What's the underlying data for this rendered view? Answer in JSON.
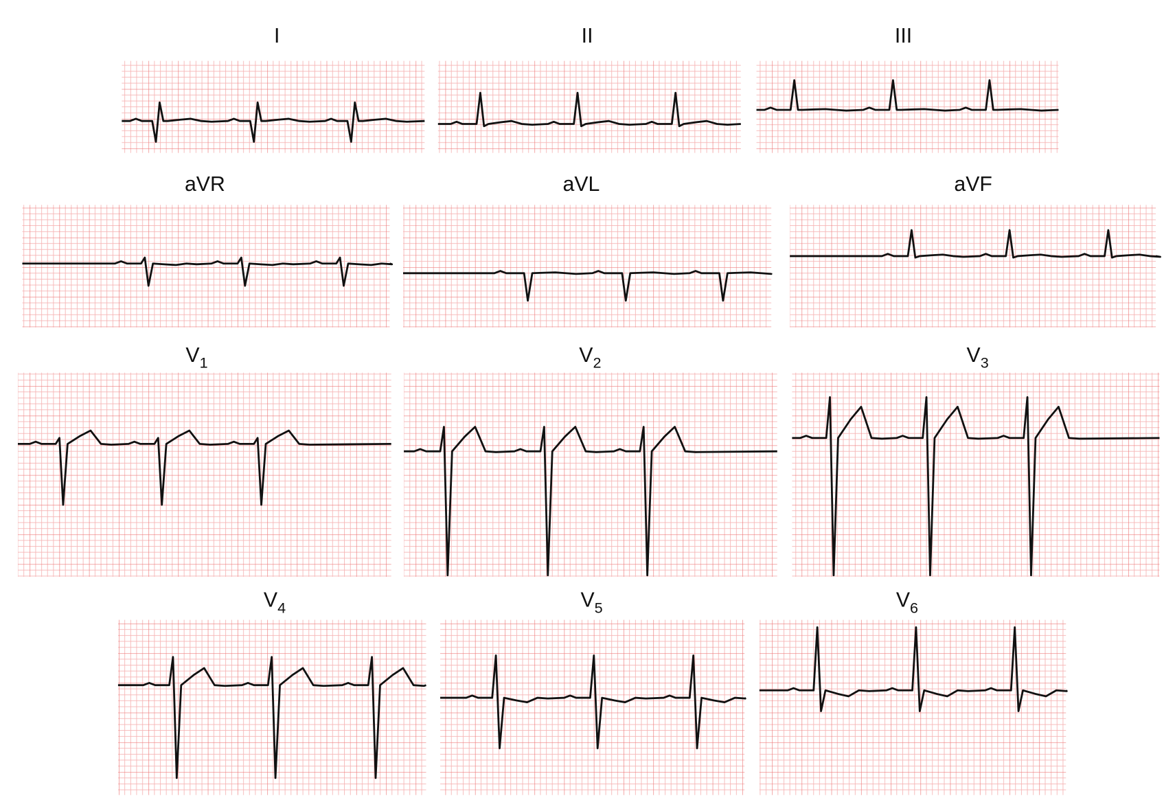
{
  "leads": [
    {
      "label": "I"
    },
    {
      "label": "II"
    },
    {
      "label": "III"
    },
    {
      "label": "aVR"
    },
    {
      "label": "aVL"
    },
    {
      "label": "aVF"
    },
    {
      "label": "V",
      "subscript": "1"
    },
    {
      "label": "V",
      "subscript": "2"
    },
    {
      "label": "V",
      "subscript": "3"
    },
    {
      "label": "V",
      "subscript": "4"
    },
    {
      "label": "V",
      "subscript": "5"
    },
    {
      "label": "V",
      "subscript": "6"
    }
  ]
}
